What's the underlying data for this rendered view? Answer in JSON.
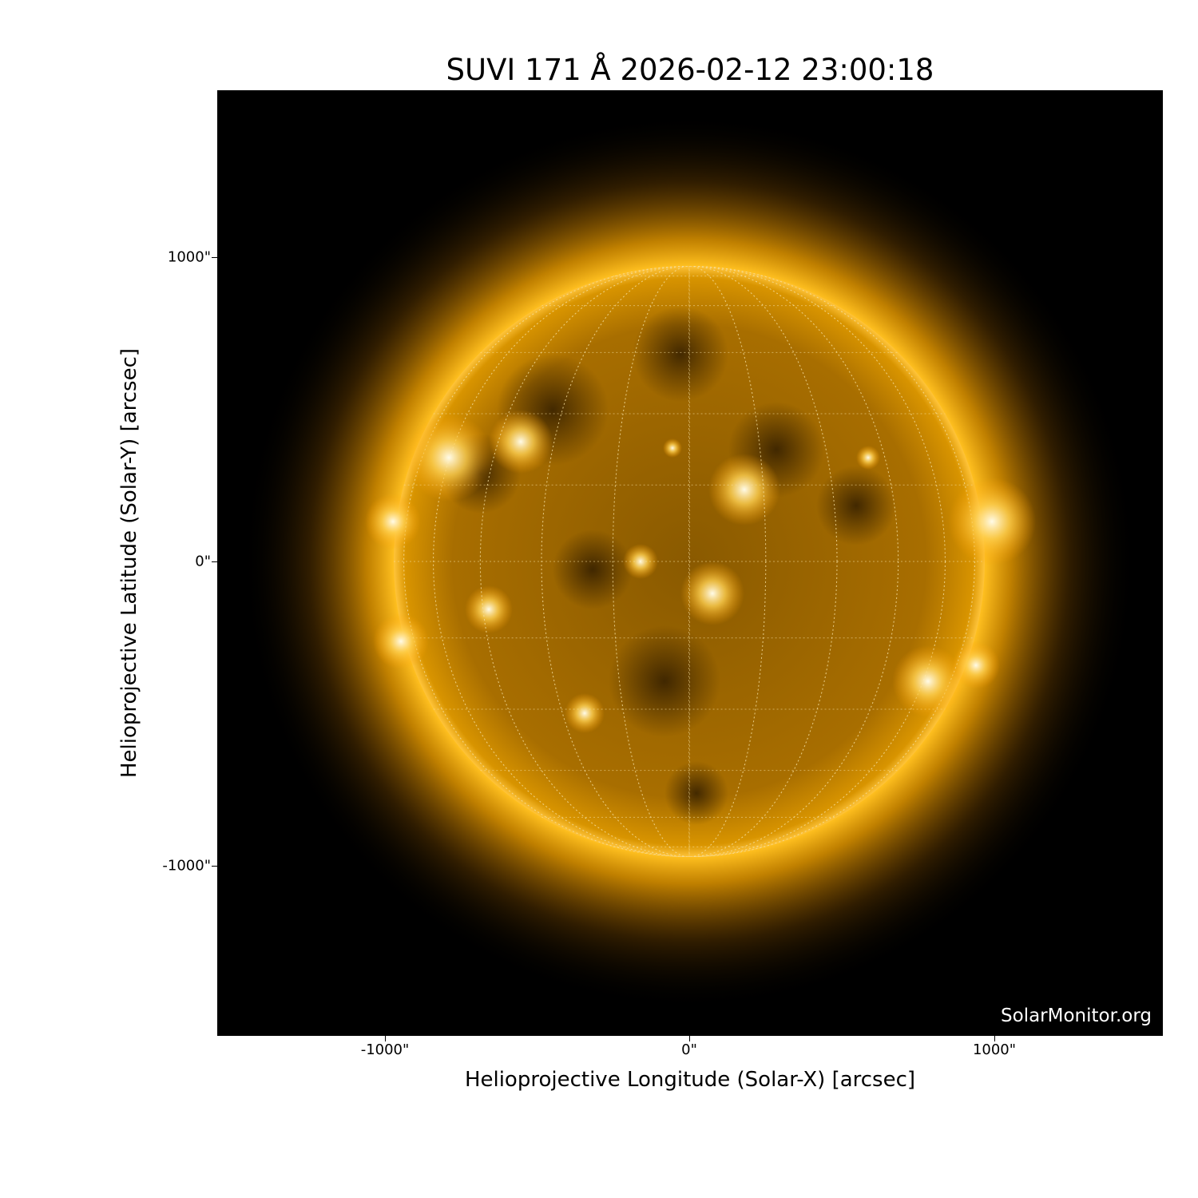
{
  "title": "SUVI 171 Å 2026-02-12 23:00:18",
  "credit": "SolarMonitor.org",
  "xaxis": {
    "label": "Helioprojective Longitude (Solar-X) [arcsec]",
    "ticks": [
      "-1000\"",
      "0\"",
      "1000\""
    ]
  },
  "yaxis": {
    "label": "Helioprojective Latitude (Solar-Y) [arcsec]",
    "ticks": [
      "1000\"",
      "0\"",
      "-1000\""
    ]
  },
  "colors": {
    "background": "#000000",
    "disk": "#c88a00",
    "corona": "#ffb000",
    "bright": "#fff6d0"
  }
}
